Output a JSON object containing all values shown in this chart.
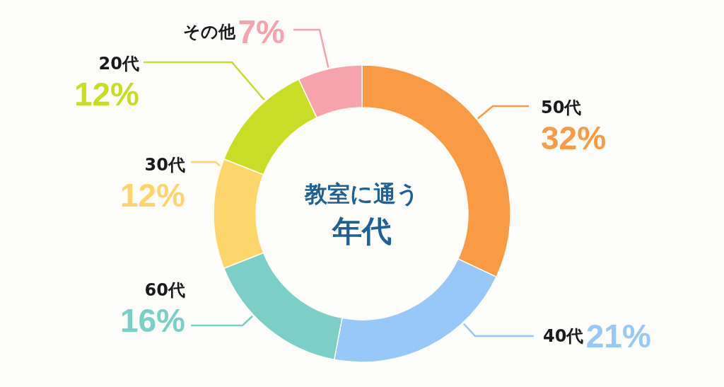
{
  "chart_data": {
    "type": "donut",
    "title": "教室に通う年代",
    "categories": [
      "50代",
      "40代",
      "60代",
      "30代",
      "20代",
      "その他"
    ],
    "values": [
      32,
      21,
      16,
      12,
      12,
      7
    ],
    "value_labels": [
      "32%",
      "21%",
      "16%",
      "12%",
      "12%",
      "7%"
    ],
    "colors": [
      "#f99b45",
      "#97c8f7",
      "#7bcfc7",
      "#fcd66a",
      "#c9dd27",
      "#f6a3ad"
    ]
  }
}
